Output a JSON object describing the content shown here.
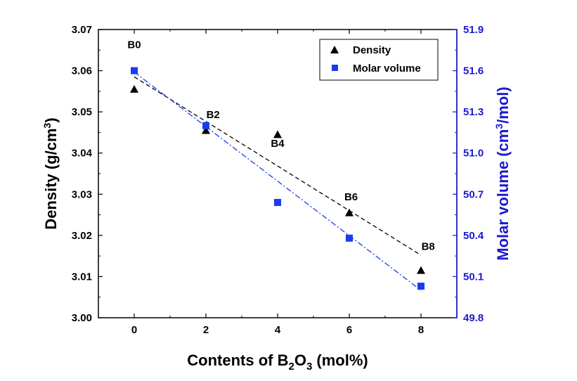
{
  "chart_data": {
    "type": "scatter",
    "title": "",
    "xlabel": {
      "prefix": "Contents of B",
      "sub1": "2",
      "mid": "O",
      "sub2": "3",
      "suffix": " (mol%)"
    },
    "ylabel_left": {
      "main": "Density (g/cm",
      "sup": "3",
      "end": ")"
    },
    "ylabel_right": {
      "main": "Molar volume (cm",
      "sup": "3",
      "end": "/mol)"
    },
    "xlim": [
      -1,
      9
    ],
    "ylim_left": [
      3.0,
      3.07
    ],
    "ylim_right": [
      49.8,
      51.9
    ],
    "x_ticks": [
      0,
      2,
      4,
      6,
      8
    ],
    "x_tick_labels": [
      "0",
      "2",
      "4",
      "6",
      "8"
    ],
    "y_left_ticks": [
      3.0,
      3.01,
      3.02,
      3.03,
      3.04,
      3.05,
      3.06,
      3.07
    ],
    "y_left_tick_labels": [
      "3.00",
      "3.01",
      "3.02",
      "3.03",
      "3.04",
      "3.05",
      "3.06",
      "3.07"
    ],
    "y_right_ticks": [
      49.8,
      50.1,
      50.4,
      50.7,
      51.0,
      51.3,
      51.6,
      51.9
    ],
    "y_right_tick_labels": [
      "49.8",
      "50.1",
      "50.4",
      "50.7",
      "51.0",
      "51.3",
      "51.6",
      "51.9"
    ],
    "series": [
      {
        "name": "Density",
        "axis": "left",
        "marker": "triangle",
        "color": "#000000",
        "x": [
          0,
          2,
          4,
          6,
          8
        ],
        "y": [
          3.0555,
          3.0455,
          3.0445,
          3.0255,
          3.0115
        ],
        "fit": {
          "style": "dashed",
          "color": "#000000",
          "start": [
            0,
            3.0585
          ],
          "end": [
            8,
            3.0152
          ]
        }
      },
      {
        "name": "Molar volume",
        "axis": "right",
        "marker": "square",
        "color": "#1a3cf0",
        "x": [
          0,
          2,
          4,
          6,
          8
        ],
        "y": [
          51.6,
          51.2,
          50.64,
          50.38,
          50.03
        ],
        "fit": {
          "style": "dashdot",
          "color": "#1a3cf0",
          "start": [
            0,
            51.59
          ],
          "end": [
            8,
            50.0
          ]
        }
      }
    ],
    "point_labels": [
      {
        "text": "B0",
        "x": 0,
        "y": 3.0655
      },
      {
        "text": "B2",
        "x": 2.2,
        "y": 3.0485
      },
      {
        "text": "B4",
        "x": 4,
        "y": 3.0415
      },
      {
        "text": "B6",
        "x": 6.05,
        "y": 3.0285
      },
      {
        "text": "B8",
        "x": 8.2,
        "y": 3.0165
      }
    ],
    "legend": {
      "position": "top-right",
      "entries": [
        "Density",
        "Molar volume"
      ]
    },
    "colors": {
      "axis": "#000000",
      "right_axis": "#1a1ad0",
      "square": "#1a3cf0",
      "fit_line_blue": "#1a3cf0"
    }
  }
}
